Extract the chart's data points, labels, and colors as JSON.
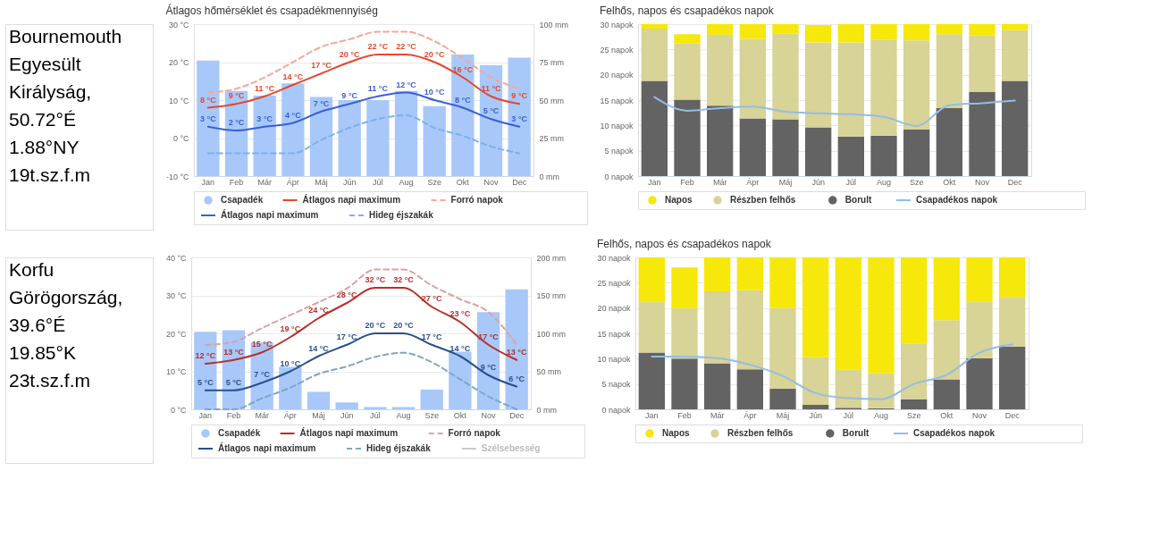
{
  "chart_data": [
    {
      "type": "other",
      "annotations": [
        "Bournemouth",
        "Egyesült",
        "Királyság,",
        "50.72°É",
        "1.88°NY",
        "19t.sz.f.m"
      ]
    },
    {
      "type": "bar",
      "title": "Átlagos hőmérséklet és csapadékmennyiség",
      "categories": [
        "Jan",
        "Feb",
        "Már",
        "Ápr",
        "Máj",
        "Jún",
        "Júl",
        "Aug",
        "Sze",
        "Okt",
        "Nov",
        "Dec"
      ],
      "ylim": [
        -10,
        30
      ],
      "yticks": [
        {
          "value": -10,
          "label": "-10 °C"
        },
        {
          "value": 0,
          "label": "0 °C"
        },
        {
          "value": 10,
          "label": "10 °C"
        },
        {
          "value": 20,
          "label": "20 °C"
        },
        {
          "value": 30,
          "label": "30 °C"
        }
      ],
      "y2lim": [
        0,
        100
      ],
      "y2ticks": [
        {
          "value": 0,
          "label": "0 mm"
        },
        {
          "value": 25,
          "label": "25 mm"
        },
        {
          "value": 50,
          "label": "50 mm"
        },
        {
          "value": 75,
          "label": "75 mm"
        },
        {
          "value": 100,
          "label": "100 mm"
        }
      ],
      "grid": "y",
      "legend": "bottom",
      "marker": "none",
      "series": [
        {
          "name": "Csapadék",
          "type": "bar",
          "axis": "y2",
          "color": "#a8c8fa",
          "values": [
            76,
            56,
            53,
            61,
            52,
            50,
            50,
            56,
            46,
            80,
            73,
            78
          ]
        },
        {
          "name": "Átlagos napi maximum",
          "type": "line",
          "color": "#e5472b",
          "line_style": "solid",
          "values": [
            8,
            9,
            11,
            14,
            17,
            20,
            22,
            22,
            20,
            16,
            11,
            9
          ],
          "value_labels": [
            "8 °C",
            "9 °C",
            "11 °C",
            "14 °C",
            "17 °C",
            "20 °C",
            "22 °C",
            "22 °C",
            "20 °C",
            "16 °C",
            "11 °C",
            "9 °C"
          ]
        },
        {
          "name": "Forró napok",
          "type": "line",
          "color": "#f5a898",
          "line_style": "dashed",
          "values": [
            12,
            13,
            16,
            20,
            24,
            26,
            28,
            28,
            25.5,
            21,
            16,
            13
          ]
        },
        {
          "name": "Átlagos napi maximum",
          "type": "line",
          "color": "#3a5fd4",
          "line_style": "solid",
          "values": [
            3,
            2,
            3,
            4,
            7,
            9,
            11,
            12,
            10,
            8,
            5,
            3
          ],
          "value_labels": [
            "3 °C",
            "2 °C",
            "3 °C",
            "4 °C",
            "7 °C",
            "9 °C",
            "11 °C",
            "12 °C",
            "10 °C",
            "8 °C",
            "5 °C",
            "3 °C"
          ]
        },
        {
          "name": "Hideg éjszakák",
          "type": "line",
          "color": "#7fb0ea",
          "line_style": "dashed",
          "values": [
            -4,
            -4,
            -4,
            -4,
            -0.5,
            2.7,
            5,
            6,
            2.7,
            0.6,
            -2.2,
            -4
          ]
        }
      ]
    },
    {
      "type": "bar",
      "title": "Felhős, napos és csapadékos napok",
      "categories": [
        "Jan",
        "Feb",
        "Már",
        "Ápr",
        "Máj",
        "Jún",
        "Júl",
        "Aug",
        "Sze",
        "Okt",
        "Nov",
        "Dec"
      ],
      "stacked": true,
      "ylim": [
        0,
        30
      ],
      "yticks": [
        {
          "value": 0,
          "label": "0 napok"
        },
        {
          "value": 5,
          "label": "5 napok"
        },
        {
          "value": 10,
          "label": "10 napok"
        },
        {
          "value": 15,
          "label": "15 napok"
        },
        {
          "value": 20,
          "label": "20 napok"
        },
        {
          "value": 25,
          "label": "25 napok"
        },
        {
          "value": 30,
          "label": "30 napok"
        }
      ],
      "grid": "y",
      "legend": "bottom",
      "marker": "none",
      "series": [
        {
          "name": "Borult",
          "type": "bar",
          "color": "#636363",
          "values": [
            18.8,
            15.1,
            13.9,
            11.4,
            11.2,
            9.6,
            7.8,
            8.0,
            9.2,
            13.4,
            16.6,
            18.8
          ]
        },
        {
          "name": "Részben felhős",
          "type": "bar",
          "color": "#d8d396",
          "values": [
            10.3,
            11.1,
            14.0,
            15.7,
            16.9,
            16.8,
            18.6,
            18.9,
            17.6,
            14.6,
            11.2,
            10.0
          ]
        },
        {
          "name": "Napos",
          "type": "bar",
          "color": "#f5e80a",
          "values": [
            0.9,
            1.8,
            2.1,
            2.9,
            1.9,
            3.4,
            3.6,
            3.1,
            3.2,
            2.0,
            2.2,
            1.2
          ]
        },
        {
          "name": "Csapadékos napok",
          "type": "line",
          "color": "#93bde6",
          "line_style": "solid",
          "values": [
            15.6,
            12.9,
            13.4,
            13.7,
            12.7,
            12.4,
            12.2,
            11.7,
            9.9,
            14.0,
            14.4,
            14.9
          ]
        }
      ]
    },
    {
      "type": "other",
      "annotations": [
        "Korfu",
        "Görögország,",
        "39.6°É",
        "19.85°K",
        "23t.sz.f.m"
      ]
    },
    {
      "type": "bar",
      "categories": [
        "Jan",
        "Feb",
        "Már",
        "Ápr",
        "Máj",
        "Jún",
        "Júl",
        "Aug",
        "Sze",
        "Okt",
        "Nov",
        "Dec"
      ],
      "ylim": [
        0,
        40
      ],
      "yticks": [
        {
          "value": 0,
          "label": "0 °C"
        },
        {
          "value": 10,
          "label": "10 °C"
        },
        {
          "value": 20,
          "label": "20 °C"
        },
        {
          "value": 30,
          "label": "30 °C"
        },
        {
          "value": 40,
          "label": "40 °C"
        }
      ],
      "y2lim": [
        0,
        200
      ],
      "y2ticks": [
        {
          "value": 0,
          "label": "0 mm"
        },
        {
          "value": 50,
          "label": "50 mm"
        },
        {
          "value": 100,
          "label": "100 mm"
        },
        {
          "value": 150,
          "label": "150 mm"
        },
        {
          "value": 200,
          "label": "200 mm"
        }
      ],
      "grid": "y",
      "legend": "bottom",
      "marker": "none",
      "series": [
        {
          "name": "Csapadék",
          "type": "bar",
          "axis": "y2",
          "color": "#a8c8fa",
          "values": [
            102,
            104,
            88,
            56,
            23,
            9,
            3,
            3,
            26,
            76,
            128,
            158
          ]
        },
        {
          "name": "Átlagos napi maximum",
          "type": "line",
          "color": "#b5302a",
          "line_style": "solid",
          "values": [
            12,
            13,
            15,
            19,
            24,
            28,
            32,
            32,
            27,
            23,
            17,
            13
          ],
          "value_labels": [
            "12 °C",
            "13 °C",
            "15 °C",
            "19 °C",
            "24 °C",
            "28 °C",
            "32 °C",
            "32 °C",
            "27 °C",
            "23 °C",
            "17 °C",
            "13 °C"
          ]
        },
        {
          "name": "Forró napok",
          "type": "line",
          "color": "#d9a3a3",
          "line_style": "dashed",
          "values": [
            16.9,
            17.8,
            21.4,
            24.8,
            28.2,
            31.8,
            36.8,
            36.8,
            32.6,
            29,
            25.6,
            17
          ]
        },
        {
          "name": "Átlagos napi maximum",
          "type": "line",
          "color": "#2a4f8f",
          "line_style": "solid",
          "values": [
            5,
            5,
            7,
            10,
            14,
            17,
            20,
            20,
            17,
            14,
            9,
            6
          ],
          "value_labels": [
            "5 °C",
            "5 °C",
            "7 °C",
            "10 °C",
            "14 °C",
            "17 °C",
            "20 °C",
            "20 °C",
            "17 °C",
            "14 °C",
            "9 °C",
            "6 °C"
          ]
        },
        {
          "name": "Hideg éjszakák",
          "type": "line",
          "color": "#7ea7c4",
          "line_style": "dashed",
          "values": [
            0,
            0,
            2.9,
            5.7,
            9.3,
            11.3,
            13.8,
            14.9,
            12.4,
            7.9,
            3.4,
            0
          ]
        },
        {
          "name": "Szélsebesség",
          "type": "line",
          "color": "#cccccc",
          "line_style": "solid",
          "values": [
            null,
            null,
            null,
            null,
            null,
            null,
            null,
            null,
            null,
            null,
            null,
            null
          ]
        }
      ]
    },
    {
      "type": "bar",
      "title": "Felhős, napos és csapadékos napok",
      "categories": [
        "Jan",
        "Feb",
        "Már",
        "Ápr",
        "Máj",
        "Jún",
        "Júl",
        "Aug",
        "Sze",
        "Okt",
        "Nov",
        "Dec"
      ],
      "stacked": true,
      "ylim": [
        0,
        30
      ],
      "yticks": [
        {
          "value": 0,
          "label": "0 napok"
        },
        {
          "value": 5,
          "label": "5 napok"
        },
        {
          "value": 10,
          "label": "10 napok"
        },
        {
          "value": 15,
          "label": "15 napok"
        },
        {
          "value": 20,
          "label": "20 napok"
        },
        {
          "value": 25,
          "label": "25 napok"
        },
        {
          "value": 30,
          "label": "30 napok"
        }
      ],
      "grid": "y",
      "legend": "bottom",
      "marker": "none",
      "series": [
        {
          "name": "Borult",
          "type": "bar",
          "color": "#636363",
          "values": [
            11.2,
            10.0,
            9.1,
            7.9,
            4.1,
            0.9,
            0.3,
            0.2,
            2.0,
            5.9,
            10.1,
            12.4
          ]
        },
        {
          "name": "Részben felhős",
          "type": "bar",
          "color": "#d8d396",
          "values": [
            10.0,
            10.0,
            14.2,
            15.6,
            15.9,
            9.4,
            7.6,
            6.9,
            11.0,
            11.7,
            11.2,
            9.8
          ]
        },
        {
          "name": "Napos",
          "type": "bar",
          "color": "#f5e80a",
          "values": [
            8.8,
            8.0,
            6.7,
            6.5,
            10.0,
            19.7,
            22.1,
            22.9,
            17.0,
            12.4,
            8.7,
            7.8
          ]
        },
        {
          "name": "Csapadékos napok",
          "type": "line",
          "color": "#93bde6",
          "line_style": "solid",
          "values": [
            10.4,
            10.4,
            10.1,
            8.8,
            6.6,
            3.2,
            2.2,
            2.0,
            5.0,
            6.8,
            11.2,
            12.8
          ]
        }
      ]
    }
  ]
}
